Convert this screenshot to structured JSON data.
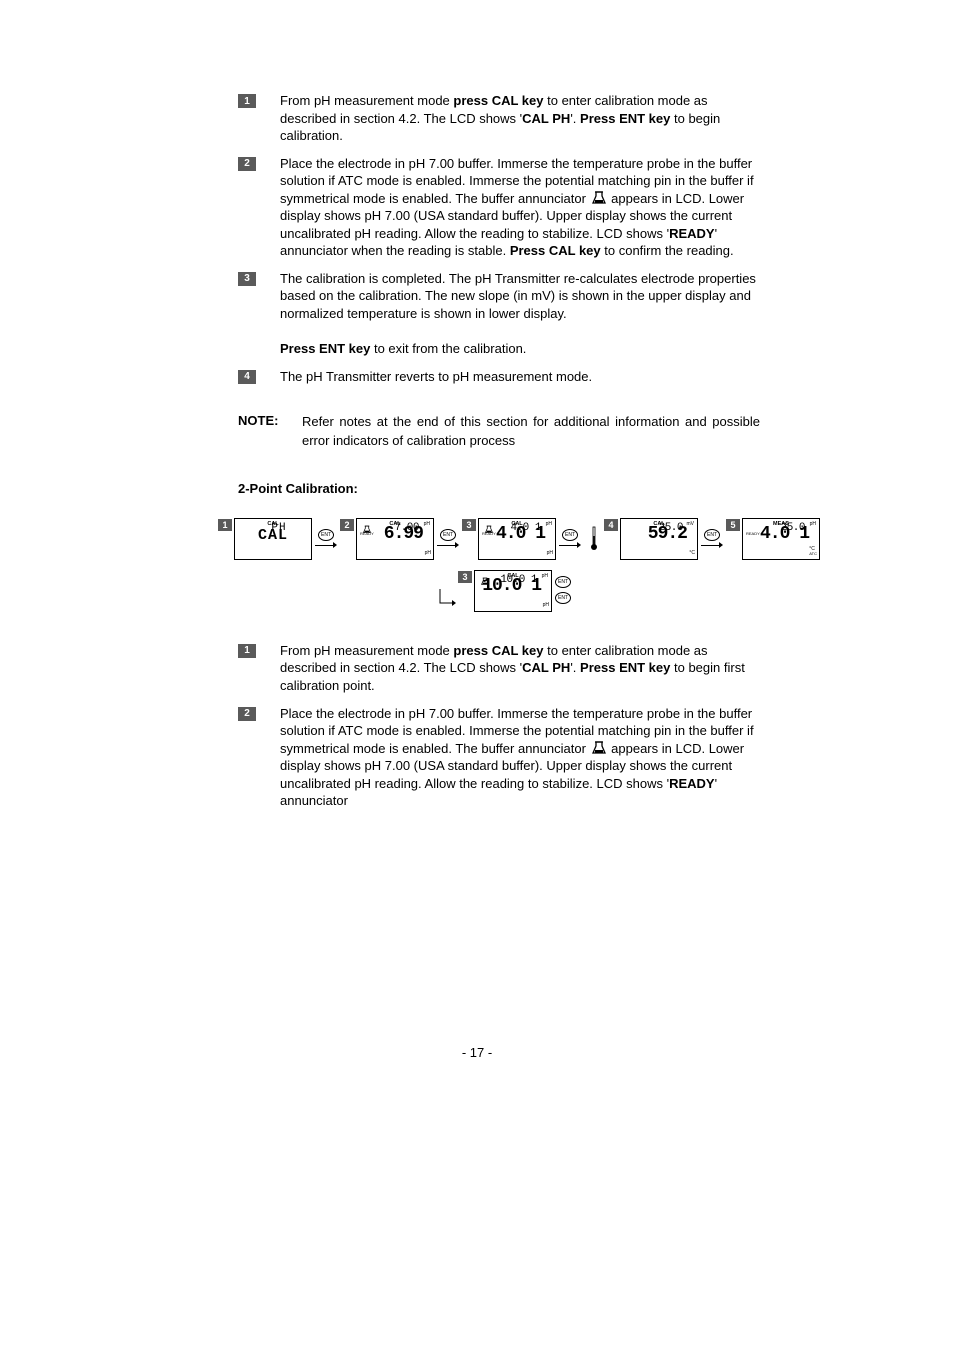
{
  "steps_a": [
    {
      "n": "1",
      "html": "From pH measurement mode <b>press CAL key</b> to enter calibration mode as described in section 4.2. The LCD shows '<b>CAL PH</b>'. <b>Press ENT key</b> to begin calibration."
    },
    {
      "n": "2",
      "html": "Place the electrode in pH 7.00 buffer. Immerse the temperature probe in the buffer solution if ATC mode is enabled. Immerse the potential matching pin in the buffer if symmetrical mode is enabled. The buffer annunciator {BEAKER} appears in LCD. Lower display shows pH 7.00 (USA standard buffer). Upper display shows the current uncalibrated pH reading. Allow the reading to stabilize. LCD shows '<b>READY</b>' annunciator when the reading is stable. <b>Press CAL key</b> to confirm the reading."
    },
    {
      "n": "3",
      "html": "The calibration is completed. The pH Transmitter re-calculates electrode properties based on the calibration. The new slope (in mV) is shown in the upper display and normalized temperature is shown in lower display.<br><br><b>Press ENT key</b> to exit from the calibration."
    },
    {
      "n": "4",
      "html": "The pH Transmitter reverts to pH measurement mode."
    }
  ],
  "note_label": "NOTE:",
  "note_text": "Refer notes at the end of this section for additional information and possible error indicators of calibration process",
  "subheading": "2-Point Calibration:",
  "diagram": {
    "lcd1": {
      "badge": "1",
      "center": "CAL",
      "main": "CAL",
      "lower": "PH",
      "textmode": true
    },
    "lcd2": {
      "badge": "2",
      "center": "CAL",
      "ready": "READY",
      "main": "6.99",
      "unit_tr": "pH",
      "lower": "7.00",
      "lower_unit": "pH",
      "beaker": true
    },
    "lcd3a": {
      "badge": "3",
      "center": "CAL",
      "ready": "READY",
      "main": "4.01",
      "unit_tr": "pH",
      "lower": "4.01",
      "lower_unit": "pH",
      "beaker": true
    },
    "lcd3b": {
      "badge": "3",
      "center": "CAL",
      "main": "10.01",
      "unit_tr": "pH",
      "lower": "10.01",
      "lower_unit": "pH",
      "beaker": true
    },
    "lcd4": {
      "badge": "4",
      "center": "CAL",
      "main": "59.2",
      "unit_tr": "mV",
      "lower": "25.0",
      "lower_unit": "°C"
    },
    "lcd5": {
      "badge": "5",
      "center": "MEAS",
      "ready": "READY",
      "main": "4.01",
      "unit_tr": "pH",
      "lower": "25.0",
      "lower_unit": "°C",
      "lower_sub": "ATC"
    },
    "ent_label": "ENT"
  },
  "steps_b": [
    {
      "n": "1",
      "html": "From pH measurement mode <b>press CAL key</b> to enter calibration mode as described in section 4.2. The LCD shows '<b>CAL PH</b>'. <b>Press ENT key</b> to begin first calibration point."
    },
    {
      "n": "2",
      "html": "Place the electrode in pH 7.00 buffer. Immerse the temperature probe in the buffer solution if ATC mode is enabled. Immerse the potential matching pin in the buffer if symmetrical mode is enabled. The buffer annunciator {BEAKER} appears in LCD. Lower display shows pH 7.00 (USA standard buffer). Upper display shows the current uncalibrated pH reading. Allow the reading to stabilize. LCD shows '<b>READY</b>' annunciator"
    }
  ],
  "page_num": "- 17 -",
  "seg_map": {
    "CAL": "CAL",
    "PH": "PH",
    "6.99": "6.99",
    "7.00": "7.00",
    "4.01": "4.0 1",
    "10.01": "10.0 1",
    "59.2": "59.2",
    "25.0": "25.0"
  }
}
